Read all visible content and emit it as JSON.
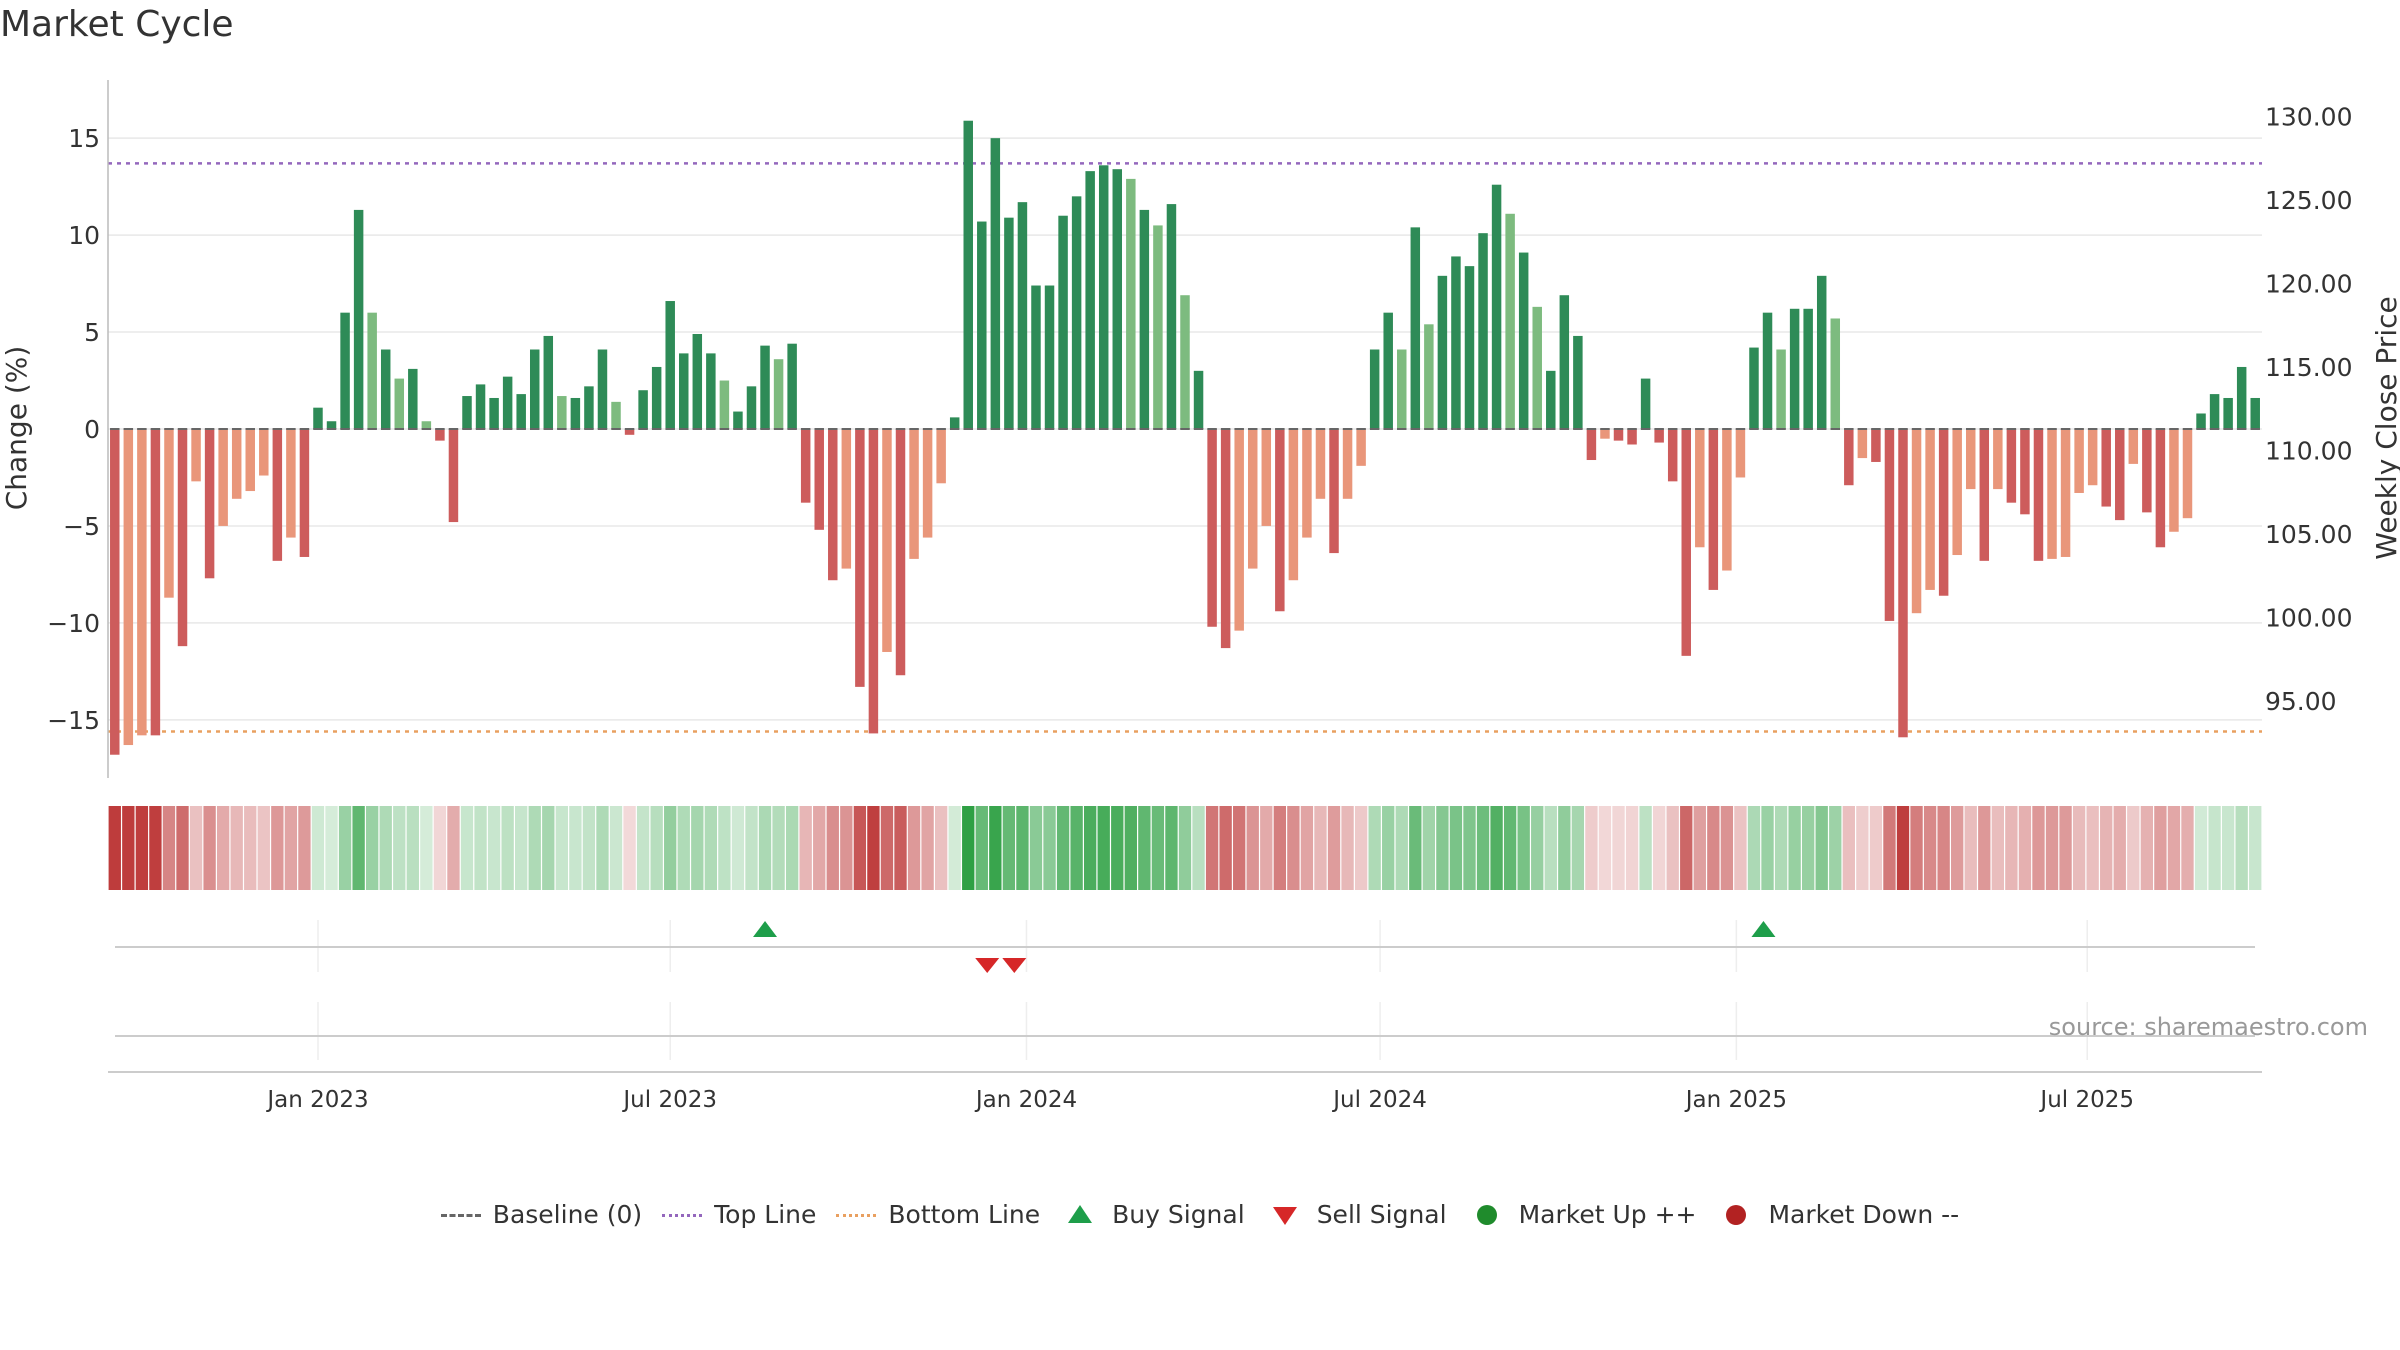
{
  "title": "Market Cycle",
  "source_text": "source: sharemaestro.com",
  "colors": {
    "up_dark": "#2e8b57",
    "up_light": "#7dbb7f",
    "down_dark": "#cd5c5c",
    "down_light": "#e9967a",
    "top_line": "#9467bd",
    "bottom_line": "#e9a060",
    "buy": "#1e9e4a",
    "sell": "#d62728",
    "market_up": "#1f8b2c",
    "market_down": "#b22222",
    "baseline": "#666666"
  },
  "chart_data": {
    "type": "bar",
    "title": "Market Cycle",
    "ylabel_left": "Change (%)",
    "ylabel_right": "Weekly Close Price",
    "ylim_left": [
      -18,
      18
    ],
    "yticks_left": [
      15,
      10,
      5,
      0,
      -5,
      -10,
      -15
    ],
    "ytick_labels_left": [
      "15",
      "10",
      "5",
      "0",
      "−5",
      "−10",
      "−15"
    ],
    "ylim_right": [
      90.4,
      132.2
    ],
    "yticks_right": [
      130,
      125,
      120,
      115,
      110,
      105,
      100,
      95
    ],
    "ytick_labels_right": [
      "130.00",
      "125.00",
      "120.00",
      "115.00",
      "110.00",
      "105.00",
      "100.00",
      "95.00"
    ],
    "top_line": 13.7,
    "bottom_line": -15.6,
    "x_start_week": -15,
    "x_ticks": [
      {
        "label": "Jan 2023",
        "week": 0
      },
      {
        "label": "Jul 2023",
        "week": 26
      },
      {
        "label": "Jan 2024",
        "week": 52.3
      },
      {
        "label": "Jul 2024",
        "week": 78.4
      },
      {
        "label": "Jan 2025",
        "week": 104.7
      },
      {
        "label": "Jul 2025",
        "week": 130.6
      }
    ],
    "values": [
      -16.8,
      -16.3,
      -15.8,
      -15.8,
      -8.7,
      -11.2,
      -2.7,
      -7.7,
      -5.0,
      -3.6,
      -3.2,
      -2.4,
      -6.8,
      -5.6,
      -6.6,
      1.1,
      0.4,
      6.0,
      11.3,
      6.0,
      4.1,
      2.6,
      3.1,
      0.4,
      -0.6,
      -4.8,
      1.7,
      2.3,
      1.6,
      2.7,
      1.8,
      4.1,
      4.8,
      1.7,
      1.6,
      2.2,
      4.1,
      1.4,
      -0.3,
      2.0,
      3.2,
      6.6,
      3.9,
      4.9,
      3.9,
      2.5,
      0.9,
      2.2,
      4.3,
      3.6,
      4.4,
      -3.8,
      -5.2,
      -7.8,
      -7.2,
      -13.3,
      -15.7,
      -11.5,
      -12.7,
      -6.7,
      -5.6,
      -2.8,
      0.6,
      15.9,
      10.7,
      15.0,
      10.9,
      11.7,
      7.4,
      7.4,
      11.0,
      12.0,
      13.3,
      13.6,
      13.4,
      12.9,
      11.3,
      10.5,
      11.6,
      6.9,
      3.0,
      -10.2,
      -11.3,
      -10.4,
      -7.2,
      -5.0,
      -9.4,
      -7.8,
      -5.6,
      -3.6,
      -6.4,
      -3.6,
      -1.9,
      4.1,
      6.0,
      4.1,
      10.4,
      5.4,
      7.9,
      8.9,
      8.4,
      10.1,
      12.6,
      11.1,
      9.1,
      6.3,
      3.0,
      6.9,
      4.8,
      -1.6,
      -0.5,
      -0.6,
      -0.8,
      2.6,
      -0.7,
      -2.7,
      -11.7,
      -6.1,
      -8.3,
      -7.3,
      -2.5,
      4.2,
      6.0,
      4.1,
      6.2,
      6.2,
      7.9,
      5.7,
      -2.9,
      -1.5,
      -1.7,
      -9.9,
      -15.9,
      -9.5,
      -8.3,
      -8.6,
      -6.5,
      -3.1,
      -6.8,
      -3.1,
      -3.8,
      -4.4,
      -6.8,
      -6.7,
      -6.6,
      -3.3,
      -2.9,
      -4.0,
      -4.7,
      -1.8,
      -4.3,
      -6.1,
      -5.3,
      -4.6,
      0.8,
      1.8,
      1.6,
      3.2,
      1.6
    ],
    "weekly_close_price": [],
    "buy_signal_weeks": [
      33,
      106.7
    ],
    "sell_signal_weeks": [
      49.4,
      51.4
    ],
    "legend": [
      {
        "label": "Baseline (0)",
        "symbol": "dash"
      },
      {
        "label": "Top Line",
        "symbol": "dot-line-purple"
      },
      {
        "label": "Bottom Line",
        "symbol": "dot-line-orange"
      },
      {
        "label": "Buy Signal",
        "symbol": "triangle-up"
      },
      {
        "label": "Sell Signal",
        "symbol": "triangle-down"
      },
      {
        "label": "Market Up ++",
        "symbol": "circle-green"
      },
      {
        "label": "Market Down --",
        "symbol": "circle-red"
      }
    ]
  }
}
